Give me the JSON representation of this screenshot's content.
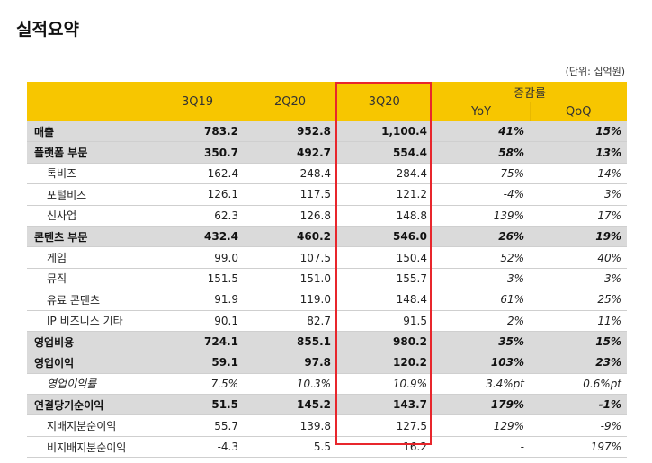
{
  "title": "실적요약",
  "unit": "(단위: 십억원)",
  "header": {
    "periods": [
      "3Q19",
      "2Q20",
      "3Q20"
    ],
    "change_group": "증감률",
    "change_cols": [
      "YoY",
      "QoQ"
    ]
  },
  "rows": [
    {
      "label": "매출",
      "type": "main",
      "values": [
        "783.2",
        "952.8",
        "1,100.4"
      ],
      "yoy": "41%",
      "qoq": "15%"
    },
    {
      "label": "플랫폼 부문",
      "type": "main",
      "values": [
        "350.7",
        "492.7",
        "554.4"
      ],
      "yoy": "58%",
      "qoq": "13%"
    },
    {
      "label": "톡비즈",
      "type": "sub",
      "values": [
        "162.4",
        "248.4",
        "284.4"
      ],
      "yoy": "75%",
      "qoq": "14%"
    },
    {
      "label": "포털비즈",
      "type": "sub",
      "values": [
        "126.1",
        "117.5",
        "121.2"
      ],
      "yoy": "-4%",
      "qoq": "3%"
    },
    {
      "label": "신사업",
      "type": "sub",
      "values": [
        "62.3",
        "126.8",
        "148.8"
      ],
      "yoy": "139%",
      "qoq": "17%"
    },
    {
      "label": "콘텐츠 부문",
      "type": "main",
      "values": [
        "432.4",
        "460.2",
        "546.0"
      ],
      "yoy": "26%",
      "qoq": "19%"
    },
    {
      "label": "게임",
      "type": "sub",
      "values": [
        "99.0",
        "107.5",
        "150.4"
      ],
      "yoy": "52%",
      "qoq": "40%"
    },
    {
      "label": "뮤직",
      "type": "sub",
      "values": [
        "151.5",
        "151.0",
        "155.7"
      ],
      "yoy": "3%",
      "qoq": "3%"
    },
    {
      "label": "유료 콘텐츠",
      "type": "sub",
      "values": [
        "91.9",
        "119.0",
        "148.4"
      ],
      "yoy": "61%",
      "qoq": "25%"
    },
    {
      "label": "IP 비즈니스 기타",
      "type": "sub",
      "values": [
        "90.1",
        "82.7",
        "91.5"
      ],
      "yoy": "2%",
      "qoq": "11%"
    },
    {
      "label": "영업비용",
      "type": "main",
      "values": [
        "724.1",
        "855.1",
        "980.2"
      ],
      "yoy": "35%",
      "qoq": "15%"
    },
    {
      "label": "영업이익",
      "type": "main",
      "values": [
        "59.1",
        "97.8",
        "120.2"
      ],
      "yoy": "103%",
      "qoq": "23%"
    },
    {
      "label": "영업이익률",
      "type": "italic-row",
      "values": [
        "7.5%",
        "10.3%",
        "10.9%"
      ],
      "yoy": "3.4%pt",
      "qoq": "0.6%pt"
    },
    {
      "label": "연결당기순이익",
      "type": "main",
      "values": [
        "51.5",
        "145.2",
        "143.7"
      ],
      "yoy": "179%",
      "qoq": "-1%"
    },
    {
      "label": "지배지분순이익",
      "type": "sub",
      "values": [
        "55.7",
        "139.8",
        "127.5"
      ],
      "yoy": "129%",
      "qoq": "-9%"
    },
    {
      "label": "비지배지분순이익",
      "type": "sub",
      "values": [
        "-4.3",
        "5.5",
        "16.2"
      ],
      "yoy": "-",
      "qoq": "197%"
    }
  ]
}
